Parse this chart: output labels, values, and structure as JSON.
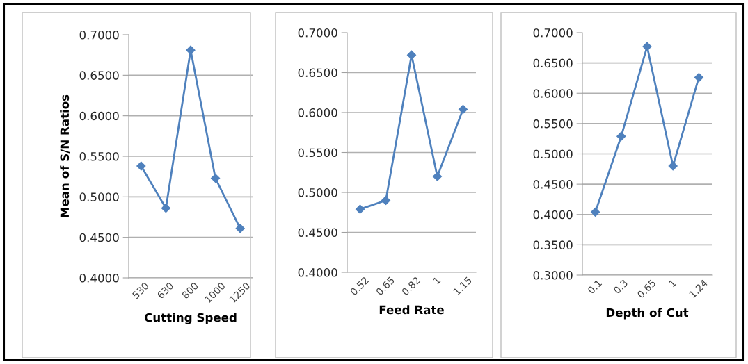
{
  "chart_data": [
    {
      "type": "line",
      "xlabel": "Cutting Speed",
      "ylabel": "Mean of S/N Ratios",
      "categories": [
        "530",
        "630",
        "800",
        "1000",
        "1250"
      ],
      "values": [
        0.538,
        0.486,
        0.681,
        0.523,
        0.461
      ],
      "color": "#4f81bd",
      "marker": "diamond",
      "ylim": [
        0.4,
        0.7
      ],
      "yticks": [
        {
          "value": 0.4,
          "label": "0.4000"
        },
        {
          "value": 0.45,
          "label": "0.4500"
        },
        {
          "value": 0.5,
          "label": "0.5000"
        },
        {
          "value": 0.55,
          "label": "0.5500"
        },
        {
          "value": 0.6,
          "label": "0.6000"
        },
        {
          "value": 0.65,
          "label": "0.6500"
        },
        {
          "value": 0.7,
          "label": "0.7000"
        }
      ],
      "grid": "y"
    },
    {
      "type": "line",
      "xlabel": "Feed Rate",
      "categories": [
        "0.52",
        "0.65",
        "0.82",
        "1",
        "1.15"
      ],
      "values": [
        0.479,
        0.49,
        0.672,
        0.52,
        0.604
      ],
      "color": "#4f81bd",
      "marker": "diamond",
      "ylim": [
        0.4,
        0.7
      ],
      "yticks": [
        {
          "value": 0.4,
          "label": "0.4000"
        },
        {
          "value": 0.45,
          "label": "0.4500"
        },
        {
          "value": 0.5,
          "label": "0.5000"
        },
        {
          "value": 0.55,
          "label": "0.5500"
        },
        {
          "value": 0.6,
          "label": "0.6000"
        },
        {
          "value": 0.65,
          "label": "0.6500"
        },
        {
          "value": 0.7,
          "label": "0.7000"
        }
      ],
      "grid": "y"
    },
    {
      "type": "line",
      "xlabel": "Depth of Cut",
      "categories": [
        "0.1",
        "0.3",
        "0.65",
        "1",
        "1.24"
      ],
      "values": [
        0.404,
        0.529,
        0.677,
        0.48,
        0.626
      ],
      "color": "#4f81bd",
      "marker": "diamond",
      "ylim": [
        0.3,
        0.7
      ],
      "yticks": [
        {
          "value": 0.3,
          "label": "0.3000"
        },
        {
          "value": 0.35,
          "label": "0.3500"
        },
        {
          "value": 0.4,
          "label": "0.4000"
        },
        {
          "value": 0.45,
          "label": "0.4500"
        },
        {
          "value": 0.5,
          "label": "0.5000"
        },
        {
          "value": 0.55,
          "label": "0.5500"
        },
        {
          "value": 0.6,
          "label": "0.6000"
        },
        {
          "value": 0.65,
          "label": "0.6500"
        },
        {
          "value": 0.7,
          "label": "0.7000"
        }
      ],
      "grid": "y"
    }
  ]
}
